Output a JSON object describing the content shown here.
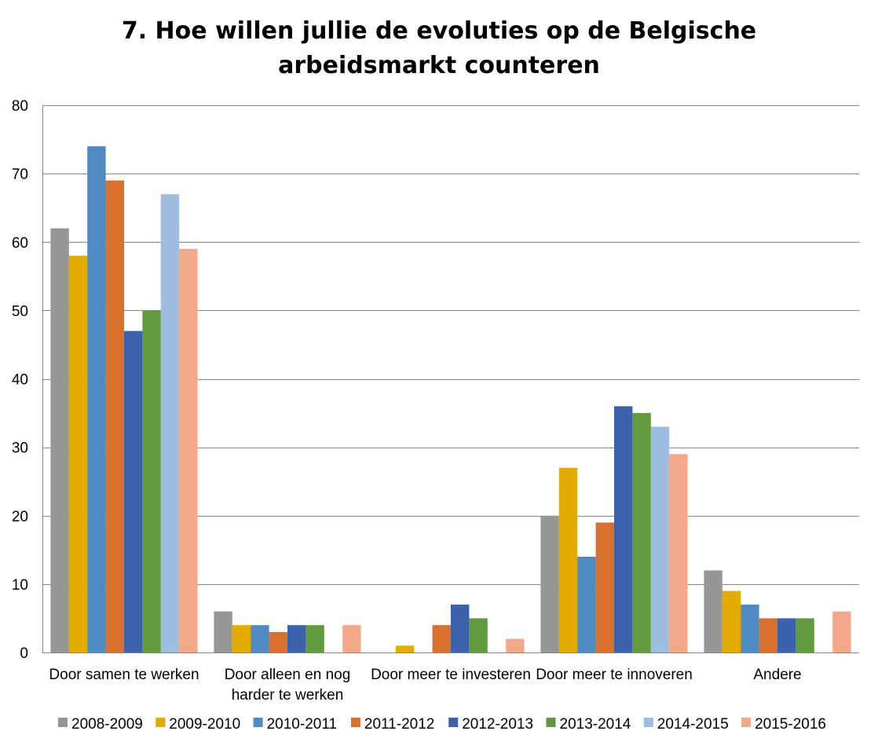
{
  "chart_data": {
    "type": "bar",
    "title_lines": [
      "7. Hoe willen jullie de evoluties op de Belgische",
      "arbeidsmarkt counteren"
    ],
    "categories": [
      [
        "Door samen te werken"
      ],
      [
        "Door alleen en nog",
        "harder te werken"
      ],
      [
        "Door meer te investeren"
      ],
      [
        "Door meer te innoveren"
      ],
      [
        "Andere"
      ]
    ],
    "ylim": [
      0,
      80
    ],
    "yticks": [
      0,
      10,
      20,
      30,
      40,
      50,
      60,
      70,
      80
    ],
    "grid": true,
    "legend_position": "bottom",
    "series": [
      {
        "name": "2008-2009",
        "color": "#969696",
        "values": [
          62,
          6,
          0,
          20,
          12
        ]
      },
      {
        "name": "2009-2010",
        "color": "#E2AC00",
        "values": [
          58,
          4,
          1,
          27,
          9
        ]
      },
      {
        "name": "2010-2011",
        "color": "#4F8BC2",
        "values": [
          74,
          4,
          0,
          14,
          7
        ]
      },
      {
        "name": "2011-2012",
        "color": "#D9702E",
        "values": [
          69,
          3,
          4,
          19,
          5
        ]
      },
      {
        "name": "2012-2013",
        "color": "#3C62AD",
        "values": [
          47,
          4,
          7,
          36,
          5
        ]
      },
      {
        "name": "2013-2014",
        "color": "#629B3D",
        "values": [
          50,
          4,
          5,
          35,
          5
        ]
      },
      {
        "name": "2014-2015",
        "color": "#9DBDE1",
        "values": [
          67,
          0,
          0,
          33,
          0
        ]
      },
      {
        "name": "2015-2016",
        "color": "#F2A98A",
        "values": [
          59,
          4,
          2,
          29,
          6
        ]
      }
    ]
  }
}
